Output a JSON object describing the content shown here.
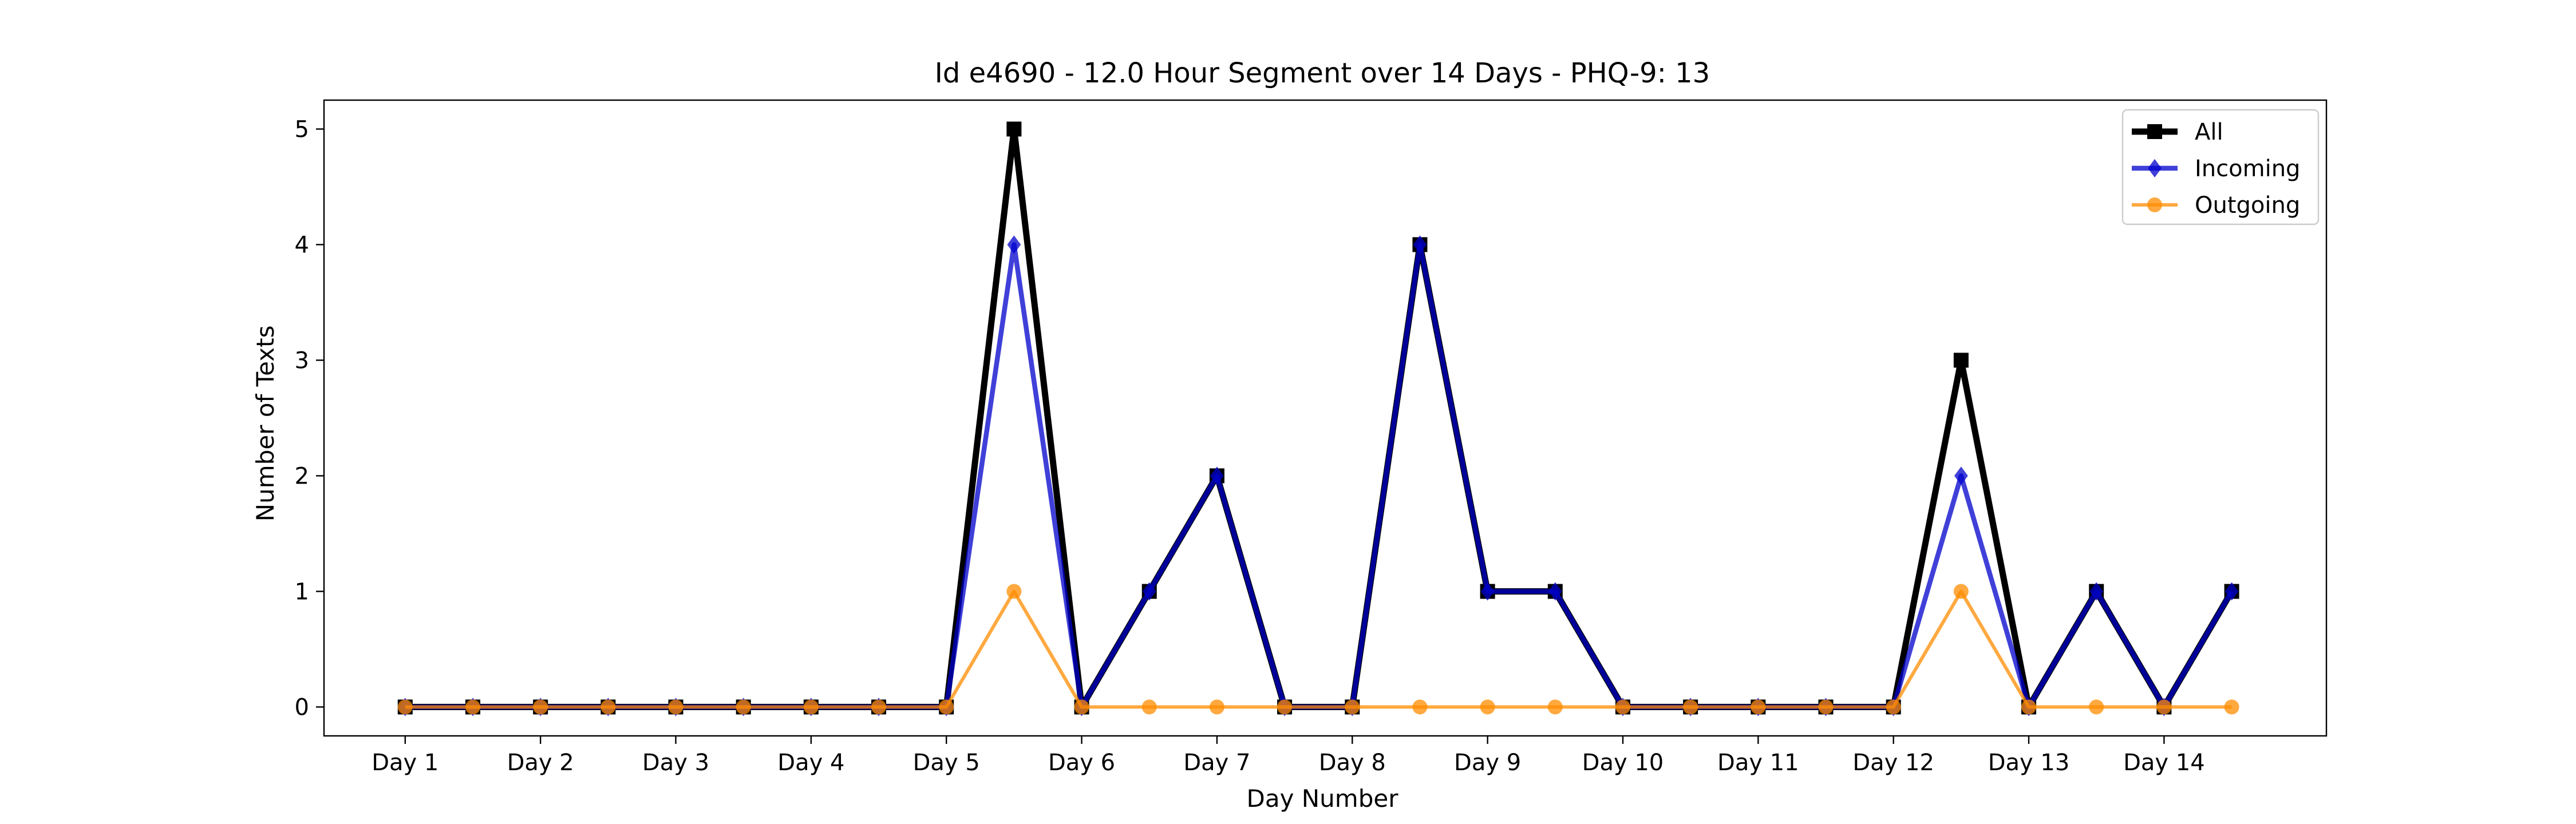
{
  "chart_data": {
    "type": "line",
    "title": "Id e4690 - 12.0 Hour Segment over 14 Days - PHQ-9: 13",
    "xlabel": "Day Number",
    "ylabel": "Number of Texts",
    "x_tick_labels": [
      "Day 1",
      "Day 2",
      "Day 3",
      "Day 4",
      "Day 5",
      "Day 6",
      "Day 7",
      "Day 8",
      "Day 9",
      "Day 10",
      "Day 11",
      "Day 12",
      "Day 13",
      "Day 14"
    ],
    "y_ticks": [
      0,
      1,
      2,
      3,
      4,
      5
    ],
    "ylim": [
      -0.25,
      5.25
    ],
    "xlim": [
      0.4,
      15.2
    ],
    "x": [
      1,
      1.5,
      2,
      2.5,
      3,
      3.5,
      4,
      4.5,
      5,
      5.5,
      6,
      6.5,
      7,
      7.5,
      8,
      8.5,
      9,
      9.5,
      10,
      10.5,
      11,
      11.5,
      12,
      12.5,
      13,
      13.5,
      14,
      14.5
    ],
    "series": [
      {
        "name": "All",
        "color": "#000000",
        "marker": "square",
        "values": [
          0,
          0,
          0,
          0,
          0,
          0,
          0,
          0,
          0,
          5,
          0,
          1,
          2,
          0,
          0,
          4,
          1,
          1,
          0,
          0,
          0,
          0,
          0,
          3,
          0,
          1,
          0,
          1
        ]
      },
      {
        "name": "Incoming",
        "color": "#0000cc",
        "marker": "diamond",
        "values": [
          0,
          0,
          0,
          0,
          0,
          0,
          0,
          0,
          0,
          4,
          0,
          1,
          2,
          0,
          0,
          4,
          1,
          1,
          0,
          0,
          0,
          0,
          0,
          2,
          0,
          1,
          0,
          1
        ]
      },
      {
        "name": "Outgoing",
        "color": "#ff8c00",
        "marker": "circle",
        "values": [
          0,
          0,
          0,
          0,
          0,
          0,
          0,
          0,
          0,
          1,
          0,
          0,
          0,
          0,
          0,
          0,
          0,
          0,
          0,
          0,
          0,
          0,
          0,
          1,
          0,
          0,
          0,
          0
        ]
      }
    ],
    "legend_position": "top-right",
    "grid": false
  }
}
